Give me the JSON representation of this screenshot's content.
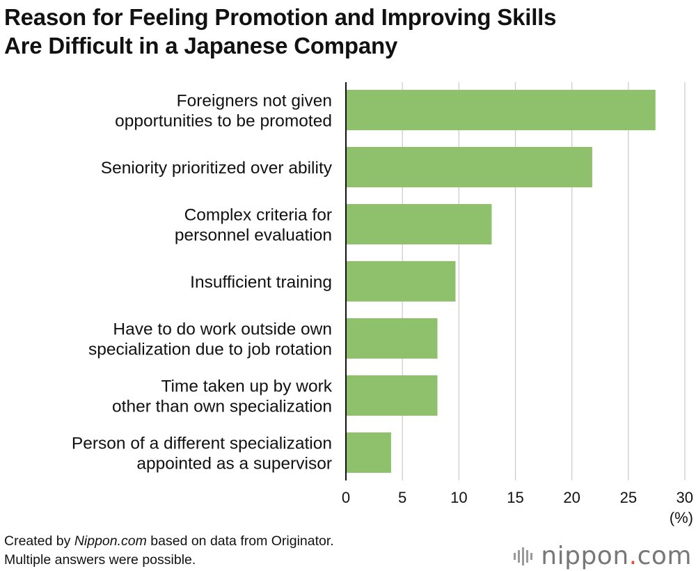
{
  "title": {
    "line1": "Reason for Feeling Promotion and Improving Skills",
    "line2": "Are Difficult in a Japanese Company"
  },
  "chart_data": {
    "type": "bar",
    "orientation": "horizontal",
    "title": "Reason for Feeling Promotion and Improving Skills Are Difficult in a Japanese Company",
    "categories": [
      [
        "Foreigners not given",
        "opportunities to be promoted"
      ],
      [
        "Seniority prioritized over ability"
      ],
      [
        "Complex criteria for",
        "personnel evaluation"
      ],
      [
        "Insufficient training"
      ],
      [
        "Have to do work outside own",
        "specialization due to job rotation"
      ],
      [
        "Time taken up by work",
        "other than own specialization"
      ],
      [
        "Person of a different specialization",
        "appointed as a supervisor"
      ]
    ],
    "values": [
      27.4,
      21.8,
      12.9,
      9.7,
      8.1,
      8.1,
      4.0
    ],
    "xlim": [
      0,
      30
    ],
    "xticks": [
      "0",
      "5",
      "10",
      "15",
      "20",
      "25",
      "30"
    ],
    "xlabel": "(%)",
    "grid": true,
    "bar_color": "#8fc06c"
  },
  "footer": {
    "line1_prefix": "Created by ",
    "line1_source": "Nippon.com",
    "line1_suffix": " based on data from Originator.",
    "line2": "Multiple answers were possible."
  },
  "brand": {
    "name": "nippon",
    "dot": ".",
    "tld": "com"
  }
}
